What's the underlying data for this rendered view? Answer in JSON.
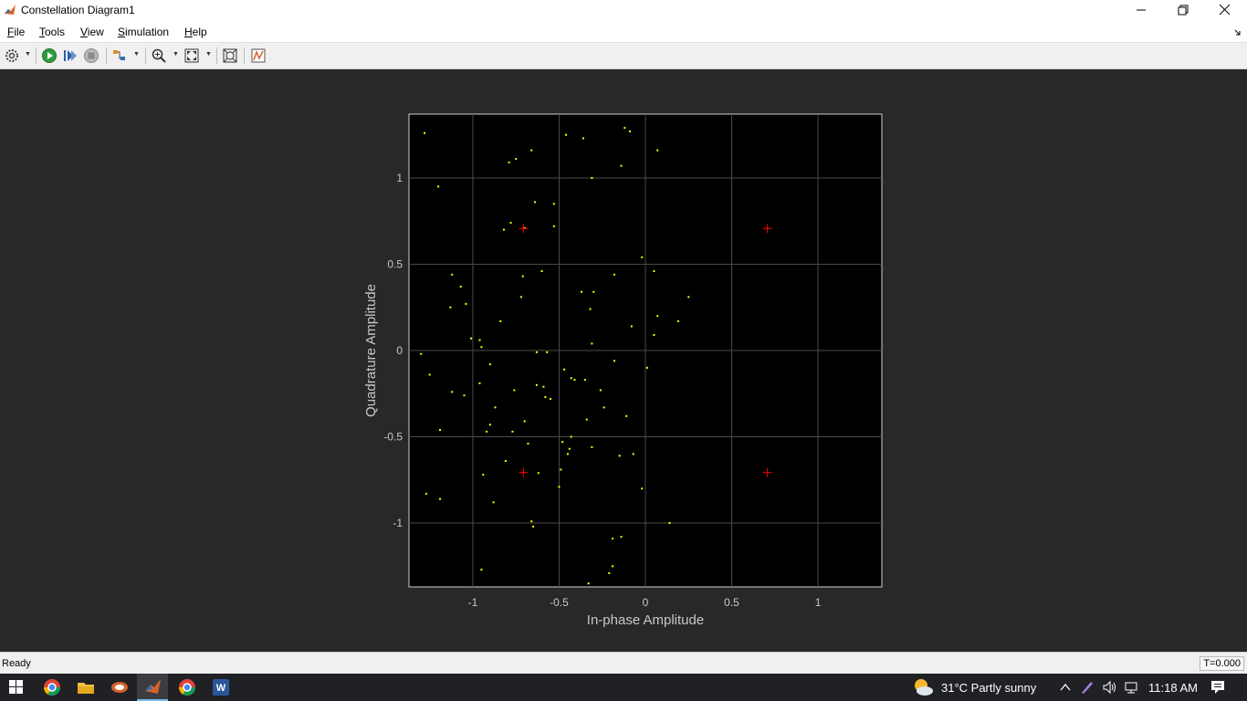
{
  "window": {
    "title": "Constellation Diagram1"
  },
  "menu": {
    "items": [
      {
        "key": "file",
        "label_u": "F",
        "label_rest": "ile"
      },
      {
        "key": "tools",
        "label_u": "T",
        "label_rest": "ools"
      },
      {
        "key": "view",
        "label_u": "V",
        "label_rest": "iew"
      },
      {
        "key": "simulation",
        "label_u": "S",
        "label_rest": "imulation"
      },
      {
        "key": "help",
        "label_u": "H",
        "label_rest": "elp"
      }
    ]
  },
  "toolbar": {
    "icons": [
      "settings-icon",
      "run-icon",
      "step-icon",
      "stop-icon",
      "signal-select-icon",
      "zoom-in-icon",
      "fit-view-icon",
      "autoscale-icon",
      "trigger-icon"
    ]
  },
  "status": {
    "left": "Ready",
    "right": "T=0.000"
  },
  "taskbar": {
    "weather": "31°C  Partly sunny",
    "time": "11:18 AM"
  },
  "colors": {
    "plot_bg": "#000000",
    "points": "#ffff00",
    "reference": "#ff0000",
    "grid": "#4a4a4a",
    "axis_text": "#c8c8c8"
  },
  "chart_data": {
    "type": "scatter",
    "xlabel": "In-phase Amplitude",
    "ylabel": "Quadrature Amplitude",
    "xlim": [
      -1.37,
      1.37
    ],
    "ylim": [
      -1.37,
      1.37
    ],
    "xticks": [
      -1,
      -0.5,
      0,
      0.5,
      1
    ],
    "yticks": [
      1,
      0.5,
      0,
      -0.5,
      -1
    ],
    "xtick_labels": [
      "-1",
      "-0.5",
      "0",
      "0.5",
      "1"
    ],
    "ytick_labels": [
      "1",
      "0.5",
      "0",
      "-0.5",
      "-1"
    ],
    "grid": true,
    "reference_points": [
      {
        "x": -0.707,
        "y": 0.707
      },
      {
        "x": 0.707,
        "y": 0.707
      },
      {
        "x": -0.707,
        "y": -0.707
      },
      {
        "x": 0.707,
        "y": -0.707
      }
    ],
    "points": [
      {
        "x": -1.28,
        "y": 1.26
      },
      {
        "x": -1.2,
        "y": 0.95
      },
      {
        "x": -0.79,
        "y": 1.09
      },
      {
        "x": -0.75,
        "y": 1.11
      },
      {
        "x": -0.66,
        "y": 1.16
      },
      {
        "x": -0.46,
        "y": 1.25
      },
      {
        "x": -0.36,
        "y": 1.23
      },
      {
        "x": -0.12,
        "y": 1.29
      },
      {
        "x": -0.09,
        "y": 1.27
      },
      {
        "x": 0.07,
        "y": 1.16
      },
      {
        "x": -0.14,
        "y": 1.07
      },
      {
        "x": -0.31,
        "y": 1.0
      },
      {
        "x": -0.64,
        "y": 0.86
      },
      {
        "x": -0.53,
        "y": 0.85
      },
      {
        "x": -0.78,
        "y": 0.74
      },
      {
        "x": -0.82,
        "y": 0.7
      },
      {
        "x": -0.7,
        "y": 0.71
      },
      {
        "x": -0.53,
        "y": 0.72
      },
      {
        "x": -0.02,
        "y": 0.54
      },
      {
        "x": -1.12,
        "y": 0.44
      },
      {
        "x": -1.07,
        "y": 0.37
      },
      {
        "x": -0.71,
        "y": 0.43
      },
      {
        "x": -0.6,
        "y": 0.46
      },
      {
        "x": 0.05,
        "y": 0.46
      },
      {
        "x": -0.18,
        "y": 0.44
      },
      {
        "x": -0.37,
        "y": 0.34
      },
      {
        "x": -0.3,
        "y": 0.34
      },
      {
        "x": -0.72,
        "y": 0.31
      },
      {
        "x": 0.25,
        "y": 0.31
      },
      {
        "x": -1.04,
        "y": 0.27
      },
      {
        "x": -1.13,
        "y": 0.25
      },
      {
        "x": -0.32,
        "y": 0.24
      },
      {
        "x": 0.07,
        "y": 0.2
      },
      {
        "x": -0.84,
        "y": 0.17
      },
      {
        "x": 0.19,
        "y": 0.17
      },
      {
        "x": -0.08,
        "y": 0.14
      },
      {
        "x": 0.05,
        "y": 0.09
      },
      {
        "x": -1.01,
        "y": 0.07
      },
      {
        "x": -0.96,
        "y": 0.06
      },
      {
        "x": -0.95,
        "y": 0.02
      },
      {
        "x": -0.31,
        "y": 0.04
      },
      {
        "x": -1.3,
        "y": -0.02
      },
      {
        "x": -0.63,
        "y": -0.01
      },
      {
        "x": -0.57,
        "y": -0.01
      },
      {
        "x": -0.18,
        "y": -0.06
      },
      {
        "x": -0.9,
        "y": -0.08
      },
      {
        "x": 0.01,
        "y": -0.1
      },
      {
        "x": -1.25,
        "y": -0.14
      },
      {
        "x": -0.47,
        "y": -0.11
      },
      {
        "x": -0.43,
        "y": -0.16
      },
      {
        "x": -0.41,
        "y": -0.17
      },
      {
        "x": -0.35,
        "y": -0.17
      },
      {
        "x": -0.96,
        "y": -0.19
      },
      {
        "x": -0.63,
        "y": -0.2
      },
      {
        "x": -0.59,
        "y": -0.21
      },
      {
        "x": -0.76,
        "y": -0.23
      },
      {
        "x": -0.26,
        "y": -0.23
      },
      {
        "x": -1.12,
        "y": -0.24
      },
      {
        "x": -1.05,
        "y": -0.26
      },
      {
        "x": -0.58,
        "y": -0.27
      },
      {
        "x": -0.55,
        "y": -0.28
      },
      {
        "x": -0.87,
        "y": -0.33
      },
      {
        "x": -0.24,
        "y": -0.33
      },
      {
        "x": -0.11,
        "y": -0.38
      },
      {
        "x": -0.34,
        "y": -0.4
      },
      {
        "x": -0.7,
        "y": -0.41
      },
      {
        "x": -0.9,
        "y": -0.43
      },
      {
        "x": -1.19,
        "y": -0.46
      },
      {
        "x": -0.92,
        "y": -0.47
      },
      {
        "x": -0.77,
        "y": -0.47
      },
      {
        "x": -0.43,
        "y": -0.5
      },
      {
        "x": -0.48,
        "y": -0.53
      },
      {
        "x": -0.68,
        "y": -0.54
      },
      {
        "x": -0.44,
        "y": -0.57
      },
      {
        "x": -0.45,
        "y": -0.6
      },
      {
        "x": -0.31,
        "y": -0.56
      },
      {
        "x": -0.15,
        "y": -0.61
      },
      {
        "x": -0.07,
        "y": -0.6
      },
      {
        "x": -0.81,
        "y": -0.64
      },
      {
        "x": -0.62,
        "y": -0.71
      },
      {
        "x": -0.49,
        "y": -0.69
      },
      {
        "x": -0.94,
        "y": -0.72
      },
      {
        "x": -0.5,
        "y": -0.79
      },
      {
        "x": -1.27,
        "y": -0.83
      },
      {
        "x": -0.02,
        "y": -0.8
      },
      {
        "x": -1.19,
        "y": -0.86
      },
      {
        "x": -0.88,
        "y": -0.88
      },
      {
        "x": -0.66,
        "y": -0.99
      },
      {
        "x": -0.65,
        "y": -1.02
      },
      {
        "x": 0.14,
        "y": -1.0
      },
      {
        "x": -0.19,
        "y": -1.09
      },
      {
        "x": -0.14,
        "y": -1.08
      },
      {
        "x": -0.19,
        "y": -1.25
      },
      {
        "x": -0.21,
        "y": -1.29
      },
      {
        "x": -0.95,
        "y": -1.27
      },
      {
        "x": -0.33,
        "y": -1.35
      }
    ]
  }
}
